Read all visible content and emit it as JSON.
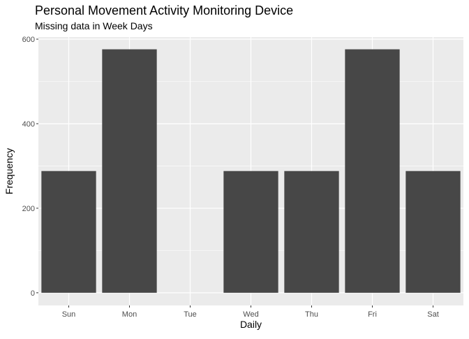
{
  "chart_data": {
    "type": "bar",
    "title": "Personal Movement Activity Monitoring Device",
    "subtitle": "Missing data in Week Days",
    "xlabel": "Daily",
    "ylabel": "Frequency",
    "categories": [
      "Sun",
      "Mon",
      "Tue",
      "Wed",
      "Thu",
      "Fri",
      "Sat"
    ],
    "values": [
      288,
      576,
      0,
      288,
      288,
      576,
      288
    ],
    "ylim": [
      -30,
      605
    ],
    "yticks": [
      0,
      200,
      400,
      600
    ],
    "grid": true,
    "legend": "none",
    "colors": {
      "bar": "#474747",
      "panel": "#ebebeb",
      "grid": "#ffffff",
      "tick_text": "#4d4d4d"
    }
  }
}
